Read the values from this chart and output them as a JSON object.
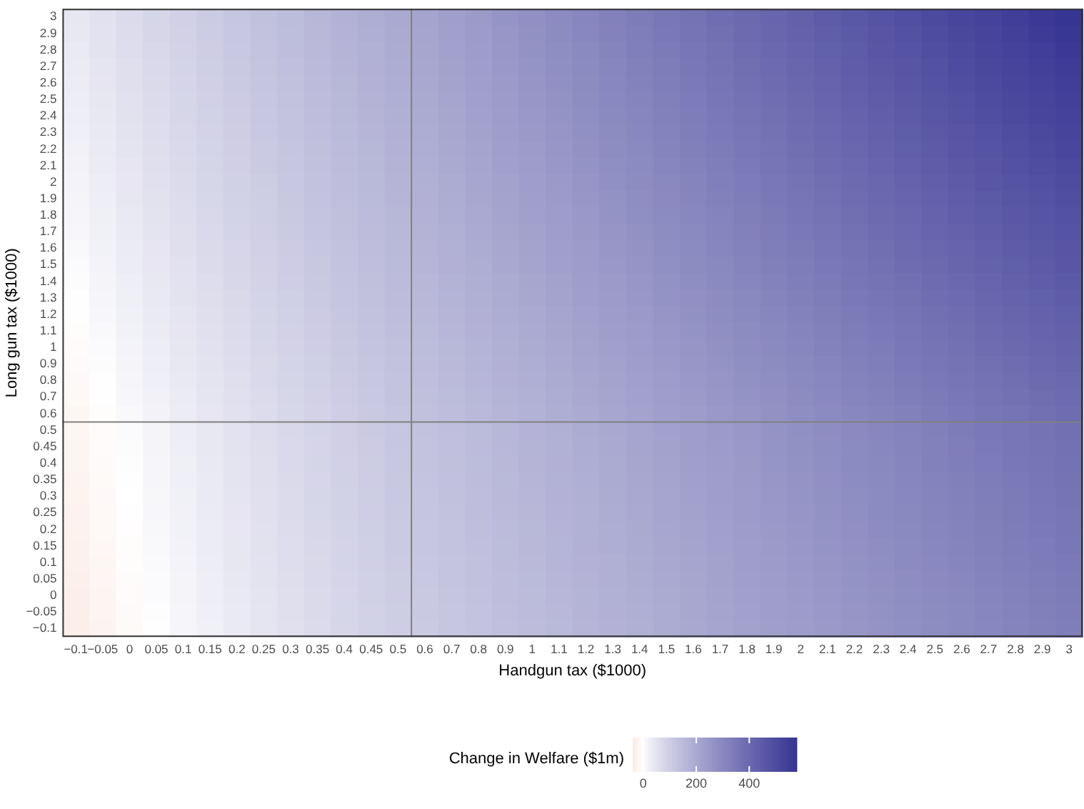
{
  "chart_data": {
    "type": "heatmap",
    "xlabel": "Handgun tax ($1000)",
    "ylabel": "Long gun tax ($1000)",
    "clabel": "Change in Welfare ($1m)",
    "categories": [
      "−0.1",
      "−0.05",
      "0",
      "0.05",
      "0.1",
      "0.15",
      "0.2",
      "0.25",
      "0.3",
      "0.35",
      "0.4",
      "0.45",
      "0.5",
      "0.6",
      "0.7",
      "0.8",
      "0.9",
      "1",
      "1.1",
      "1.2",
      "1.3",
      "1.4",
      "1.5",
      "1.6",
      "1.7",
      "1.8",
      "1.9",
      "2",
      "2.1",
      "2.2",
      "2.3",
      "2.4",
      "2.5",
      "2.6",
      "2.7",
      "2.8",
      "2.9",
      "3"
    ],
    "y_categories": [
      "3",
      "2.9",
      "2.8",
      "2.7",
      "2.6",
      "2.5",
      "2.4",
      "2.3",
      "2.2",
      "2.1",
      "2",
      "1.9",
      "1.8",
      "1.7",
      "1.6",
      "1.5",
      "1.4",
      "1.3",
      "1.2",
      "1.1",
      "1",
      "0.9",
      "0.8",
      "0.7",
      "0.6",
      "0.5",
      "0.45",
      "0.4",
      "0.35",
      "0.3",
      "0.25",
      "0.2",
      "0.15",
      "0.1",
      "0.05",
      "0",
      "−0.05",
      "−0.1"
    ],
    "cells": [
      [
        40,
        53,
        67,
        80,
        93,
        107,
        120,
        133,
        147,
        160,
        173,
        187,
        200,
        215,
        230,
        245,
        261,
        276,
        291,
        306,
        321,
        337,
        352,
        367,
        382,
        398,
        413,
        428,
        443,
        458,
        474,
        489,
        504,
        519,
        534,
        549,
        565,
        580
      ],
      [
        38,
        51,
        64,
        78,
        91,
        104,
        117,
        131,
        144,
        157,
        170,
        184,
        197,
        212,
        227,
        242,
        257,
        272,
        287,
        302,
        317,
        332,
        347,
        362,
        377,
        392,
        407,
        422,
        437,
        452,
        467,
        482,
        497,
        512,
        527,
        542,
        557,
        572
      ],
      [
        35,
        49,
        62,
        75,
        88,
        101,
        114,
        128,
        141,
        154,
        167,
        180,
        194,
        208,
        223,
        238,
        253,
        267,
        282,
        297,
        312,
        327,
        342,
        356,
        371,
        386,
        401,
        416,
        431,
        445,
        460,
        475,
        490,
        505,
        519,
        534,
        549,
        564
      ],
      [
        33,
        46,
        59,
        72,
        85,
        99,
        112,
        125,
        138,
        151,
        164,
        177,
        190,
        205,
        219,
        234,
        249,
        263,
        278,
        292,
        307,
        322,
        336,
        351,
        366,
        380,
        395,
        409,
        424,
        439,
        453,
        468,
        483,
        497,
        512,
        526,
        541,
        556
      ],
      [
        31,
        44,
        57,
        70,
        83,
        96,
        109,
        122,
        135,
        148,
        161,
        174,
        187,
        201,
        216,
        230,
        245,
        259,
        274,
        288,
        302,
        317,
        331,
        346,
        360,
        375,
        389,
        404,
        418,
        432,
        447,
        461,
        476,
        490,
        505,
        519,
        534,
        548
      ],
      [
        28,
        41,
        54,
        67,
        80,
        93,
        106,
        119,
        132,
        145,
        158,
        171,
        184,
        198,
        212,
        226,
        241,
        255,
        269,
        283,
        298,
        312,
        326,
        340,
        355,
        369,
        383,
        397,
        412,
        426,
        440,
        454,
        469,
        483,
        497,
        511,
        525,
        540
      ],
      [
        26,
        39,
        52,
        65,
        78,
        90,
        103,
        116,
        129,
        142,
        155,
        168,
        181,
        195,
        209,
        223,
        237,
        251,
        265,
        279,
        293,
        307,
        321,
        335,
        349,
        363,
        377,
        391,
        405,
        419,
        433,
        447,
        462,
        476,
        490,
        504,
        518,
        532
      ],
      [
        24,
        37,
        49,
        62,
        75,
        88,
        101,
        113,
        126,
        139,
        152,
        165,
        177,
        191,
        205,
        219,
        233,
        247,
        260,
        274,
        288,
        302,
        316,
        330,
        344,
        357,
        371,
        385,
        399,
        413,
        427,
        441,
        454,
        468,
        482,
        496,
        510,
        524
      ],
      [
        21,
        34,
        47,
        60,
        72,
        85,
        98,
        110,
        123,
        136,
        149,
        161,
        174,
        188,
        201,
        215,
        229,
        242,
        256,
        270,
        283,
        297,
        311,
        324,
        338,
        352,
        365,
        379,
        393,
        406,
        420,
        434,
        447,
        461,
        475,
        488,
        502,
        515
      ],
      [
        19,
        32,
        44,
        57,
        70,
        82,
        95,
        108,
        120,
        133,
        146,
        158,
        171,
        184,
        198,
        211,
        225,
        238,
        252,
        265,
        278,
        292,
        305,
        319,
        332,
        346,
        359,
        373,
        386,
        399,
        413,
        426,
        440,
        453,
        467,
        480,
        494,
        507
      ],
      [
        17,
        29,
        42,
        55,
        67,
        80,
        92,
        105,
        117,
        130,
        143,
        155,
        168,
        181,
        194,
        207,
        221,
        234,
        247,
        260,
        274,
        287,
        300,
        313,
        327,
        340,
        353,
        366,
        380,
        393,
        406,
        420,
        433,
        446,
        459,
        473,
        486,
        499
      ],
      [
        15,
        27,
        40,
        52,
        65,
        77,
        90,
        102,
        115,
        127,
        140,
        152,
        165,
        177,
        190,
        204,
        217,
        230,
        243,
        256,
        269,
        282,
        295,
        308,
        321,
        334,
        347,
        360,
        374,
        387,
        400,
        413,
        426,
        439,
        452,
        465,
        478,
        491
      ],
      [
        12,
        25,
        37,
        49,
        62,
        74,
        87,
        99,
        112,
        124,
        136,
        149,
        161,
        174,
        187,
        200,
        213,
        226,
        238,
        251,
        264,
        277,
        290,
        303,
        316,
        329,
        342,
        354,
        367,
        380,
        393,
        406,
        419,
        432,
        445,
        457,
        470,
        483
      ],
      [
        10,
        22,
        35,
        47,
        59,
        72,
        84,
        96,
        109,
        121,
        133,
        146,
        158,
        171,
        183,
        196,
        209,
        221,
        234,
        247,
        259,
        272,
        285,
        297,
        310,
        323,
        336,
        348,
        361,
        374,
        386,
        399,
        412,
        424,
        437,
        450,
        462,
        475
      ],
      [
        8,
        20,
        32,
        44,
        57,
        69,
        81,
        93,
        106,
        118,
        130,
        143,
        155,
        167,
        180,
        192,
        205,
        217,
        230,
        242,
        255,
        267,
        280,
        292,
        305,
        317,
        330,
        342,
        355,
        367,
        380,
        392,
        405,
        417,
        430,
        442,
        455,
        467
      ],
      [
        5,
        17,
        30,
        42,
        54,
        66,
        78,
        91,
        103,
        115,
        127,
        139,
        152,
        164,
        176,
        188,
        201,
        213,
        225,
        238,
        250,
        262,
        274,
        287,
        299,
        311,
        324,
        336,
        348,
        361,
        373,
        385,
        398,
        410,
        422,
        434,
        447,
        459
      ],
      [
        3,
        15,
        27,
        39,
        51,
        63,
        76,
        88,
        100,
        112,
        124,
        136,
        148,
        160,
        172,
        185,
        197,
        209,
        221,
        233,
        245,
        257,
        269,
        281,
        294,
        306,
        318,
        330,
        342,
        354,
        366,
        378,
        390,
        402,
        414,
        427,
        439,
        451
      ],
      [
        1,
        13,
        25,
        37,
        49,
        61,
        73,
        85,
        97,
        109,
        121,
        133,
        145,
        157,
        169,
        181,
        193,
        205,
        217,
        228,
        240,
        252,
        264,
        276,
        288,
        300,
        312,
        324,
        336,
        348,
        360,
        371,
        383,
        395,
        407,
        419,
        431,
        443
      ],
      [
        -2,
        10,
        22,
        34,
        46,
        58,
        70,
        82,
        94,
        106,
        118,
        130,
        142,
        154,
        165,
        177,
        189,
        200,
        212,
        224,
        236,
        247,
        259,
        271,
        283,
        294,
        306,
        318,
        329,
        341,
        353,
        365,
        376,
        388,
        400,
        411,
        423,
        435
      ],
      [
        -4,
        8,
        20,
        32,
        44,
        55,
        67,
        79,
        91,
        103,
        115,
        127,
        139,
        150,
        162,
        173,
        185,
        196,
        208,
        219,
        231,
        242,
        254,
        265,
        277,
        288,
        300,
        311,
        323,
        334,
        346,
        358,
        369,
        381,
        392,
        404,
        415,
        427
      ],
      [
        -7,
        5,
        17,
        29,
        41,
        53,
        64,
        76,
        88,
        100,
        112,
        124,
        135,
        147,
        158,
        169,
        181,
        192,
        203,
        215,
        226,
        237,
        249,
        260,
        271,
        283,
        294,
        305,
        317,
        328,
        339,
        351,
        362,
        373,
        385,
        396,
        407,
        419
      ],
      [
        -9,
        3,
        15,
        26,
        38,
        50,
        62,
        73,
        85,
        97,
        109,
        120,
        132,
        143,
        154,
        166,
        177,
        188,
        199,
        210,
        221,
        232,
        244,
        255,
        266,
        277,
        288,
        299,
        310,
        322,
        333,
        344,
        355,
        366,
        377,
        388,
        400,
        411
      ],
      [
        -11,
        1,
        12,
        24,
        36,
        47,
        59,
        71,
        82,
        94,
        106,
        117,
        129,
        140,
        151,
        162,
        173,
        184,
        195,
        206,
        216,
        227,
        238,
        249,
        260,
        271,
        282,
        293,
        304,
        315,
        326,
        337,
        348,
        359,
        370,
        381,
        392,
        403
      ],
      [
        -13,
        -2,
        10,
        21,
        33,
        45,
        56,
        68,
        79,
        91,
        103,
        114,
        126,
        136,
        147,
        158,
        169,
        179,
        190,
        201,
        212,
        222,
        233,
        244,
        255,
        265,
        276,
        287,
        298,
        309,
        319,
        330,
        341,
        352,
        362,
        373,
        384,
        395
      ],
      [
        -16,
        -4,
        7,
        19,
        30,
        42,
        54,
        65,
        77,
        88,
        100,
        111,
        123,
        133,
        143,
        154,
        165,
        175,
        186,
        196,
        207,
        217,
        228,
        239,
        249,
        260,
        270,
        281,
        291,
        302,
        312,
        323,
        334,
        344,
        355,
        365,
        376,
        386
      ],
      [
        -18,
        -7,
        5,
        16,
        28,
        39,
        51,
        62,
        74,
        85,
        96,
        108,
        119,
        130,
        140,
        150,
        161,
        171,
        181,
        192,
        202,
        212,
        223,
        233,
        244,
        254,
        264,
        275,
        285,
        295,
        306,
        316,
        326,
        337,
        347,
        357,
        368,
        378
      ],
      [
        -19,
        -8,
        3,
        15,
        26,
        38,
        49,
        61,
        72,
        83,
        95,
        106,
        118,
        128,
        138,
        148,
        159,
        169,
        179,
        189,
        200,
        210,
        220,
        231,
        241,
        251,
        261,
        272,
        282,
        292,
        302,
        313,
        323,
        333,
        344,
        354,
        364,
        374
      ],
      [
        -20,
        -9,
        2,
        14,
        25,
        36,
        48,
        59,
        71,
        82,
        93,
        105,
        116,
        126,
        136,
        147,
        157,
        167,
        177,
        187,
        197,
        208,
        218,
        228,
        238,
        248,
        258,
        269,
        279,
        289,
        299,
        309,
        320,
        330,
        340,
        350,
        360,
        370
      ],
      [
        -22,
        -10,
        1,
        13,
        24,
        35,
        47,
        58,
        69,
        81,
        92,
        103,
        115,
        124,
        134,
        145,
        155,
        165,
        175,
        185,
        195,
        205,
        215,
        225,
        235,
        245,
        255,
        266,
        276,
        286,
        296,
        306,
        316,
        326,
        336,
        346,
        356,
        366
      ],
      [
        -23,
        -11,
        0,
        11,
        23,
        34,
        45,
        56,
        68,
        79,
        90,
        102,
        113,
        123,
        133,
        143,
        153,
        163,
        173,
        183,
        193,
        203,
        212,
        222,
        232,
        242,
        252,
        262,
        272,
        282,
        292,
        302,
        312,
        322,
        332,
        342,
        352,
        362
      ],
      [
        -24,
        -13,
        -1,
        10,
        21,
        32,
        44,
        55,
        66,
        77,
        89,
        100,
        111,
        121,
        131,
        141,
        151,
        160,
        170,
        180,
        190,
        200,
        210,
        220,
        230,
        240,
        250,
        259,
        269,
        279,
        289,
        299,
        309,
        319,
        329,
        338,
        348,
        358
      ],
      [
        -25,
        -14,
        -3,
        9,
        20,
        31,
        42,
        54,
        65,
        76,
        87,
        99,
        110,
        119,
        129,
        139,
        149,
        158,
        168,
        178,
        188,
        198,
        207,
        217,
        227,
        237,
        247,
        256,
        266,
        276,
        286,
        296,
        305,
        315,
        325,
        335,
        345,
        354
      ],
      [
        -26,
        -15,
        -4,
        7,
        19,
        30,
        41,
        52,
        63,
        75,
        86,
        97,
        108,
        118,
        127,
        137,
        147,
        156,
        166,
        176,
        186,
        195,
        205,
        214,
        224,
        234,
        243,
        253,
        263,
        273,
        282,
        292,
        302,
        311,
        321,
        331,
        340,
        350
      ],
      [
        -27,
        -16,
        -5,
        6,
        17,
        28,
        40,
        51,
        62,
        73,
        84,
        95,
        106,
        116,
        125,
        135,
        145,
        154,
        164,
        173,
        183,
        193,
        202,
        212,
        221,
        231,
        241,
        250,
        260,
        269,
        279,
        289,
        298,
        308,
        317,
        327,
        337,
        346
      ],
      [
        -29,
        -17,
        -6,
        5,
        16,
        27,
        38,
        49,
        60,
        71,
        83,
        94,
        105,
        114,
        124,
        133,
        143,
        152,
        162,
        171,
        181,
        190,
        200,
        209,
        219,
        228,
        238,
        247,
        257,
        266,
        276,
        285,
        295,
        304,
        314,
        323,
        333,
        342
      ],
      [
        -30,
        -19,
        -8,
        4,
        15,
        26,
        37,
        48,
        59,
        70,
        81,
        92,
        103,
        112,
        122,
        131,
        141,
        150,
        159,
        169,
        178,
        188,
        197,
        206,
        216,
        225,
        235,
        244,
        253,
        263,
        272,
        282,
        291,
        300,
        310,
        319,
        329,
        338
      ],
      [
        -31,
        -20,
        -9,
        2,
        13,
        24,
        35,
        46,
        58,
        69,
        80,
        91,
        102,
        111,
        120,
        129,
        139,
        148,
        157,
        167,
        176,
        185,
        194,
        204,
        213,
        222,
        232,
        241,
        250,
        260,
        269,
        278,
        287,
        297,
        306,
        315,
        325,
        334
      ],
      [
        -32,
        -21,
        -10,
        1,
        12,
        23,
        34,
        45,
        56,
        67,
        78,
        89,
        100,
        109,
        118,
        127,
        137,
        146,
        155,
        164,
        173,
        183,
        192,
        201,
        210,
        220,
        229,
        238,
        247,
        256,
        266,
        275,
        284,
        293,
        302,
        312,
        321,
        330
      ]
    ],
    "clim": [
      -40,
      580
    ],
    "cticks": [
      0,
      200,
      400
    ]
  }
}
